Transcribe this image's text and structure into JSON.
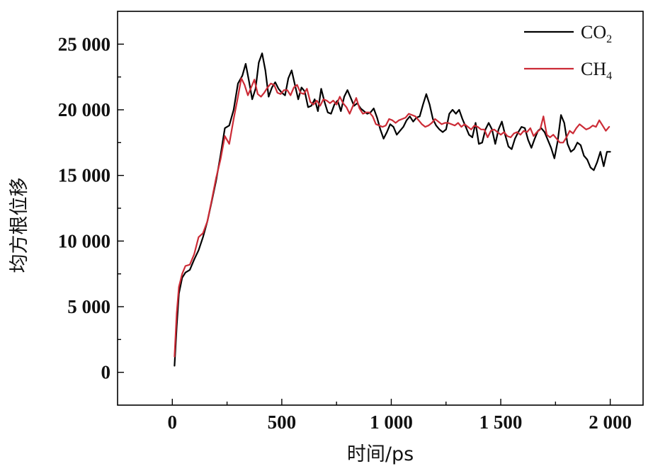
{
  "chart_data": {
    "type": "line",
    "xlabel": "时间/ps",
    "ylabel": "均方根位移",
    "xlim": [
      -250,
      2150
    ],
    "ylim": [
      -2500,
      27500
    ],
    "x_ticks": [
      0,
      500,
      1000,
      1500,
      2000
    ],
    "x_tick_labels": [
      "0",
      "500",
      "1 000",
      "1 500",
      "2 000"
    ],
    "y_ticks": [
      0,
      5000,
      10000,
      15000,
      20000,
      25000
    ],
    "y_tick_labels": [
      "0",
      "5 000",
      "10 000",
      "15 000",
      "20 000",
      "25 000"
    ],
    "grid": false,
    "legend_position": "top-right",
    "series": [
      {
        "name": "CO2",
        "legend_main": "CO",
        "legend_sub": "2",
        "color": "#000000",
        "x": [
          10,
          20,
          30,
          45,
          60,
          80,
          100,
          120,
          140,
          160,
          180,
          200,
          220,
          240,
          260,
          280,
          300,
          320,
          335,
          350,
          365,
          380,
          395,
          410,
          425,
          440,
          455,
          470,
          485,
          500,
          515,
          530,
          545,
          560,
          575,
          590,
          605,
          620,
          635,
          650,
          665,
          680,
          695,
          710,
          725,
          740,
          755,
          770,
          785,
          800,
          815,
          830,
          845,
          860,
          875,
          890,
          905,
          920,
          935,
          950,
          965,
          980,
          995,
          1010,
          1025,
          1040,
          1055,
          1070,
          1085,
          1100,
          1115,
          1130,
          1145,
          1160,
          1175,
          1190,
          1205,
          1220,
          1235,
          1250,
          1265,
          1280,
          1295,
          1310,
          1325,
          1340,
          1355,
          1370,
          1385,
          1400,
          1415,
          1430,
          1445,
          1460,
          1475,
          1490,
          1505,
          1520,
          1535,
          1550,
          1565,
          1580,
          1595,
          1610,
          1625,
          1640,
          1655,
          1670,
          1685,
          1700,
          1715,
          1730,
          1745,
          1760,
          1775,
          1790,
          1805,
          1820,
          1835,
          1850,
          1865,
          1880,
          1895,
          1910,
          1925,
          1940,
          1955,
          1970,
          1985,
          2000
        ],
        "y": [
          500,
          3500,
          6000,
          7200,
          7600,
          7800,
          8600,
          9300,
          10300,
          11500,
          13000,
          14600,
          16500,
          18600,
          18800,
          20000,
          22000,
          22600,
          23500,
          22200,
          20800,
          21600,
          23600,
          24300,
          23000,
          21000,
          21700,
          22100,
          21600,
          21300,
          21100,
          22400,
          23000,
          21900,
          20800,
          21700,
          21400,
          20200,
          20300,
          20800,
          19900,
          21600,
          20600,
          19800,
          19700,
          20400,
          20700,
          19900,
          21000,
          21500,
          20900,
          20300,
          20500,
          20100,
          19900,
          19700,
          19800,
          20100,
          19400,
          18500,
          17800,
          18300,
          18900,
          18700,
          18100,
          18400,
          18700,
          19200,
          19500,
          19100,
          19400,
          19500,
          20400,
          21200,
          20400,
          19300,
          18800,
          18500,
          18300,
          18500,
          19700,
          20000,
          19700,
          20000,
          19300,
          18700,
          18100,
          17900,
          19000,
          17400,
          17500,
          18500,
          19000,
          18500,
          17400,
          18500,
          19100,
          18100,
          17200,
          17000,
          17800,
          18300,
          18700,
          18600,
          17700,
          17100,
          17800,
          18400,
          18600,
          18300,
          17700,
          17100,
          16300,
          17600,
          19600,
          19000,
          17400,
          16800,
          17000,
          17500,
          17300,
          16500,
          16200,
          15600,
          15400,
          16000,
          16800,
          15700,
          16800,
          16800
        ]
      },
      {
        "name": "CH4",
        "legend_main": "CH",
        "legend_sub": "4",
        "color": "#cc2b36",
        "x": [
          10,
          20,
          30,
          45,
          60,
          80,
          100,
          120,
          140,
          160,
          180,
          200,
          220,
          240,
          260,
          280,
          300,
          315,
          330,
          345,
          360,
          375,
          390,
          405,
          420,
          435,
          450,
          465,
          480,
          495,
          510,
          525,
          540,
          555,
          570,
          585,
          600,
          615,
          630,
          645,
          660,
          675,
          690,
          705,
          720,
          735,
          750,
          765,
          780,
          795,
          810,
          825,
          840,
          855,
          870,
          885,
          900,
          915,
          930,
          945,
          960,
          975,
          990,
          1005,
          1020,
          1035,
          1050,
          1065,
          1080,
          1095,
          1110,
          1125,
          1140,
          1155,
          1170,
          1185,
          1200,
          1215,
          1230,
          1245,
          1260,
          1275,
          1290,
          1305,
          1320,
          1335,
          1350,
          1365,
          1380,
          1395,
          1410,
          1425,
          1440,
          1455,
          1470,
          1485,
          1500,
          1515,
          1530,
          1545,
          1560,
          1575,
          1590,
          1605,
          1620,
          1635,
          1650,
          1665,
          1680,
          1695,
          1710,
          1725,
          1740,
          1755,
          1770,
          1785,
          1800,
          1815,
          1830,
          1845,
          1860,
          1875,
          1890,
          1905,
          1920,
          1935,
          1950,
          1965,
          1980,
          1995
        ],
        "y": [
          1200,
          4500,
          6500,
          7500,
          8100,
          8200,
          9000,
          10300,
          10600,
          11500,
          13100,
          14800,
          16200,
          18000,
          17400,
          19300,
          21000,
          22400,
          21900,
          21100,
          21700,
          22300,
          21200,
          21000,
          21300,
          21700,
          22000,
          21900,
          21300,
          21200,
          21500,
          21500,
          21100,
          21700,
          21900,
          21300,
          21200,
          21600,
          20600,
          20400,
          20700,
          20300,
          20800,
          20700,
          20500,
          20700,
          20400,
          21000,
          20500,
          20200,
          19700,
          20300,
          20900,
          20100,
          19700,
          19800,
          19800,
          19500,
          18900,
          18800,
          18700,
          18800,
          19300,
          19200,
          19000,
          19200,
          19300,
          19400,
          19700,
          19600,
          19500,
          19200,
          18900,
          18700,
          18800,
          19000,
          19300,
          19100,
          18900,
          19000,
          19000,
          18900,
          18800,
          19000,
          18700,
          18900,
          18700,
          18500,
          18800,
          18700,
          18500,
          18500,
          17900,
          18400,
          18500,
          18300,
          18100,
          18300,
          18000,
          17900,
          18200,
          18300,
          18100,
          18400,
          18300,
          18600,
          18000,
          18300,
          18500,
          19500,
          18100,
          17900,
          18100,
          17800,
          17500,
          17500,
          17900,
          18400,
          18200,
          18600,
          18900,
          18700,
          18500,
          18600,
          18800,
          18700,
          19200,
          18800,
          18400,
          18700
        ]
      }
    ]
  }
}
